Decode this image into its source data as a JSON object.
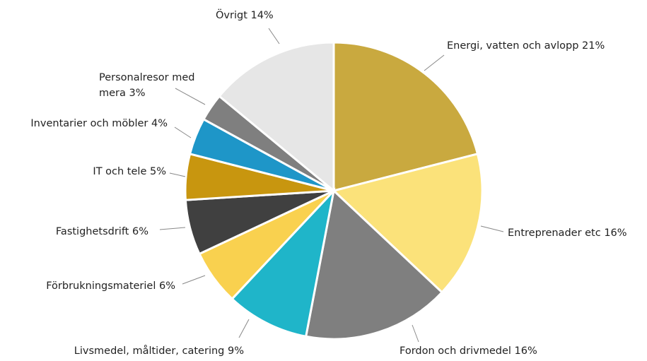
{
  "chart_data": {
    "type": "pie",
    "categories": [
      "Energi, vatten och avlopp",
      "Entreprenader etc",
      "Fordon och drivmedel",
      "Livsmedel, måltider, catering",
      "Förbrukningsmateriel",
      "Fastighetsdrift",
      "IT och tele",
      "Inventarier och möbler",
      "Personalresor med mera",
      "Övrigt"
    ],
    "values": [
      21,
      16,
      16,
      9,
      6,
      6,
      5,
      4,
      3,
      14
    ],
    "value_labels": [
      "21%",
      "16%",
      "16%",
      "9%",
      "6%",
      "6%",
      "5%",
      "4%",
      "3%",
      "14%"
    ],
    "colors": [
      "#c9a93f",
      "#fbe27a",
      "#7f7f7f",
      "#1fb5c9",
      "#f9d14f",
      "#404040",
      "#c8960f",
      "#1e96c8",
      "#7f7f7f",
      "#e6e6e6"
    ]
  }
}
